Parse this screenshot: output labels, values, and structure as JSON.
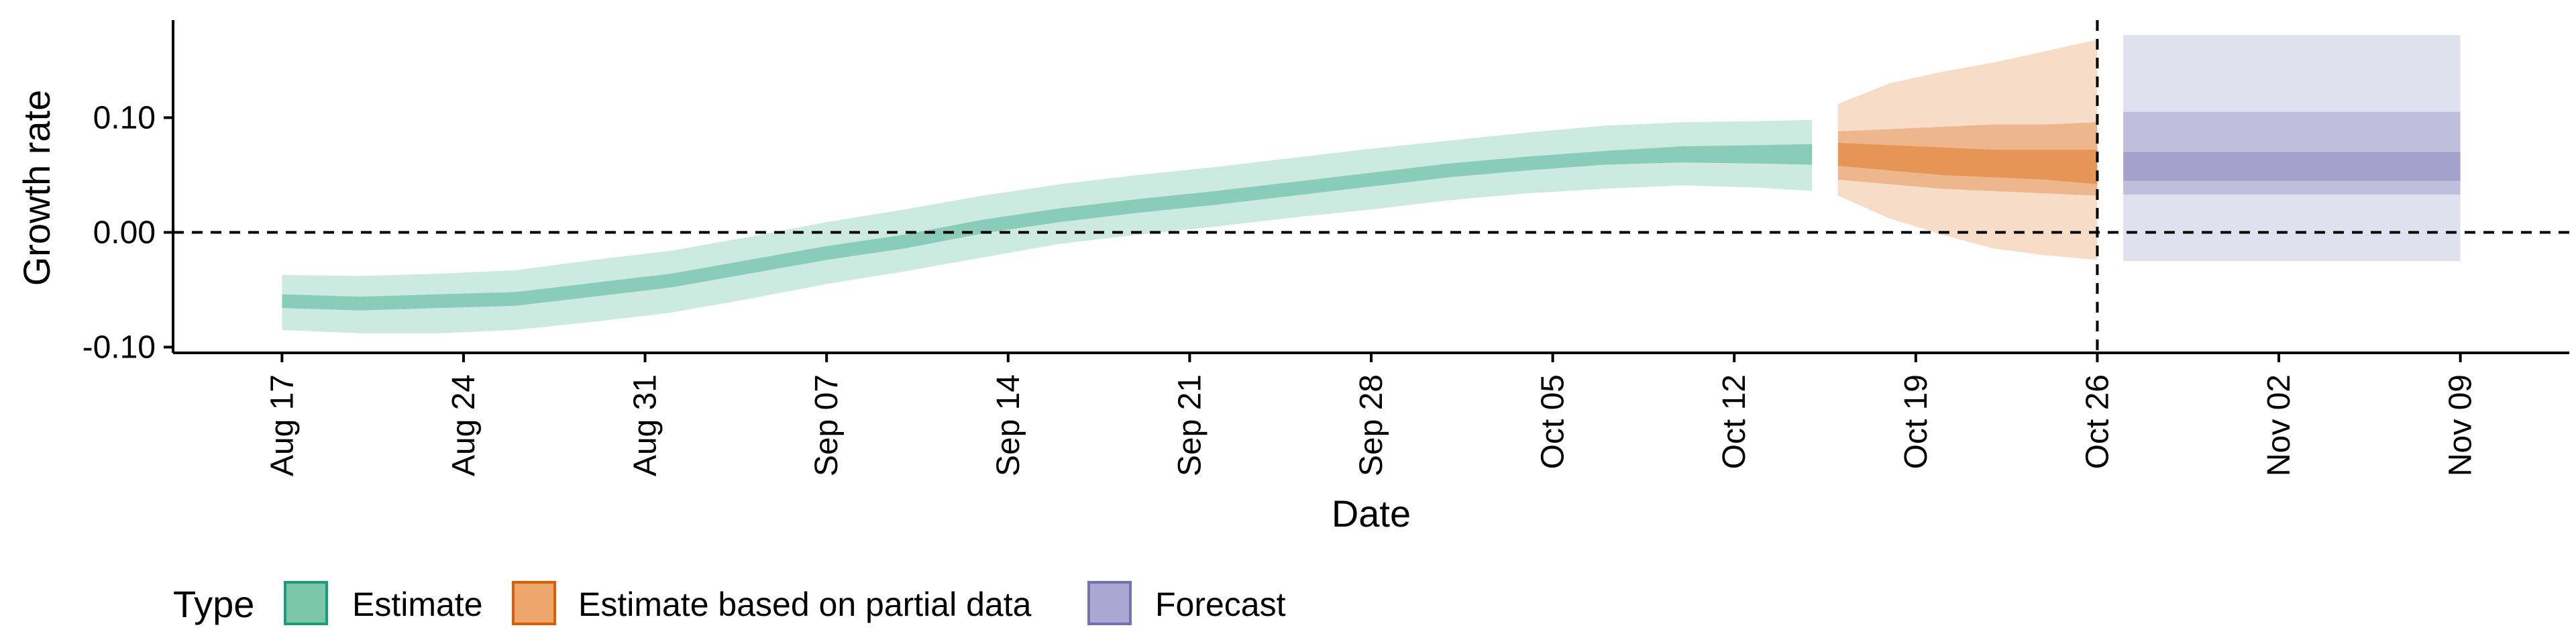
{
  "chart_data": {
    "type": "area",
    "title": "",
    "xlabel": "Date",
    "ylabel": "Growth rate",
    "y_ticks": [
      -0.1,
      0.0,
      0.1
    ],
    "y_tick_labels": [
      "-0.10",
      "0.00",
      "0.10"
    ],
    "ylim": [
      -0.105,
      0.185
    ],
    "x_start": "2020-08-17",
    "x_ticks": [
      "Aug 17",
      "Aug 24",
      "Aug 31",
      "Sep 07",
      "Sep 14",
      "Sep 21",
      "Sep 28",
      "Oct 05",
      "Oct 12",
      "Oct 19",
      "Oct 26",
      "Nov 02",
      "Nov 09"
    ],
    "x_tick_days": [
      0,
      7,
      14,
      21,
      28,
      35,
      42,
      49,
      56,
      63,
      70,
      77,
      84
    ],
    "xlim_days": [
      -4.2,
      88.2
    ],
    "reference_lines": [
      {
        "axis": "y",
        "value": 0.0,
        "style": "dashed"
      },
      {
        "axis": "x",
        "day": 70,
        "label": "Oct 26",
        "style": "dashed"
      }
    ],
    "legend": {
      "title": "Type",
      "position": "bottom-left",
      "entries": [
        {
          "label": "Estimate",
          "color": "#1b9e77"
        },
        {
          "label": "Estimate based on partial data",
          "color": "#d95f02"
        },
        {
          "label": "Forecast",
          "color": "#7570b3"
        }
      ]
    },
    "series": [
      {
        "name": "Estimate",
        "color": "#1b9e77",
        "x_days": [
          0,
          3,
          6,
          9,
          12,
          15,
          18,
          21,
          24,
          27,
          30,
          33,
          36,
          39,
          42,
          45,
          48,
          51,
          54,
          57,
          59
        ],
        "median": [
          -0.06,
          -0.062,
          -0.06,
          -0.058,
          -0.05,
          -0.042,
          -0.03,
          -0.018,
          -0.008,
          0.005,
          0.015,
          0.023,
          0.03,
          0.038,
          0.046,
          0.054,
          0.06,
          0.065,
          0.068,
          0.068,
          0.068
        ],
        "ci_20": [
          [
            -0.066,
            -0.054
          ],
          [
            -0.068,
            -0.056
          ],
          [
            -0.066,
            -0.054
          ],
          [
            -0.064,
            -0.052
          ],
          [
            -0.056,
            -0.044
          ],
          [
            -0.048,
            -0.036
          ],
          [
            -0.036,
            -0.024
          ],
          [
            -0.024,
            -0.012
          ],
          [
            -0.014,
            -0.002
          ],
          [
            -0.001,
            0.011
          ],
          [
            0.009,
            0.021
          ],
          [
            0.017,
            0.029
          ],
          [
            0.024,
            0.036
          ],
          [
            0.032,
            0.044
          ],
          [
            0.04,
            0.052
          ],
          [
            0.048,
            0.06
          ],
          [
            0.054,
            0.066
          ],
          [
            0.059,
            0.071
          ],
          [
            0.061,
            0.075
          ],
          [
            0.06,
            0.076
          ],
          [
            0.059,
            0.077
          ]
        ],
        "ci_90": [
          [
            -0.085,
            -0.037
          ],
          [
            -0.088,
            -0.038
          ],
          [
            -0.088,
            -0.036
          ],
          [
            -0.085,
            -0.033
          ],
          [
            -0.078,
            -0.024
          ],
          [
            -0.07,
            -0.016
          ],
          [
            -0.058,
            -0.004
          ],
          [
            -0.045,
            0.009
          ],
          [
            -0.034,
            0.02
          ],
          [
            -0.022,
            0.032
          ],
          [
            -0.01,
            0.042
          ],
          [
            -0.002,
            0.05
          ],
          [
            0.005,
            0.057
          ],
          [
            0.013,
            0.065
          ],
          [
            0.02,
            0.073
          ],
          [
            0.028,
            0.08
          ],
          [
            0.034,
            0.087
          ],
          [
            0.038,
            0.093
          ],
          [
            0.041,
            0.096
          ],
          [
            0.039,
            0.097
          ],
          [
            0.036,
            0.098
          ]
        ]
      },
      {
        "name": "Estimate based on partial data",
        "color": "#d95f02",
        "x_days": [
          60,
          62,
          64,
          66,
          68,
          70
        ],
        "median": [
          0.068,
          0.066,
          0.062,
          0.06,
          0.058,
          0.056
        ],
        "ci_20": [
          [
            0.058,
            0.078
          ],
          [
            0.054,
            0.076
          ],
          [
            0.05,
            0.074
          ],
          [
            0.048,
            0.072
          ],
          [
            0.046,
            0.072
          ],
          [
            0.042,
            0.072
          ]
        ],
        "ci_50": [
          [
            0.046,
            0.088
          ],
          [
            0.042,
            0.09
          ],
          [
            0.038,
            0.092
          ],
          [
            0.036,
            0.094
          ],
          [
            0.034,
            0.094
          ],
          [
            0.032,
            0.096
          ]
        ],
        "ci_90": [
          [
            0.032,
            0.112
          ],
          [
            0.012,
            0.13
          ],
          [
            -0.002,
            0.14
          ],
          [
            -0.014,
            0.148
          ],
          [
            -0.02,
            0.158
          ],
          [
            -0.024,
            0.168
          ]
        ]
      },
      {
        "name": "Forecast",
        "color": "#7570b3",
        "x_days": [
          71,
          84
        ],
        "median": [
          0.055,
          0.055
        ],
        "ci_20": [
          [
            0.045,
            0.07
          ],
          [
            0.045,
            0.07
          ]
        ],
        "ci_50": [
          [
            0.033,
            0.105
          ],
          [
            0.033,
            0.105
          ]
        ],
        "ci_90": [
          [
            -0.025,
            0.172
          ],
          [
            -0.025,
            0.172
          ]
        ]
      }
    ]
  }
}
